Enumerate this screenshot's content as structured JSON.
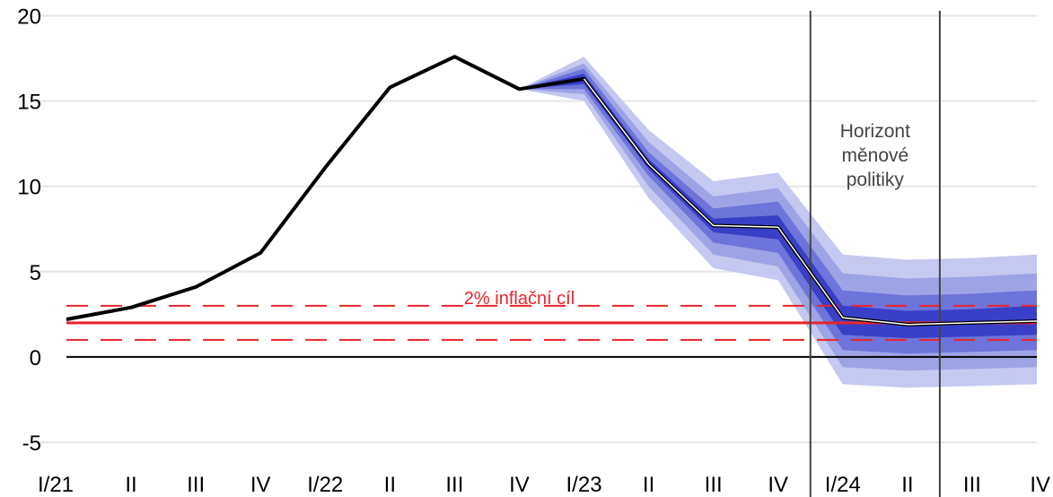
{
  "chart_data": {
    "type": "line",
    "categories": [
      "I/21",
      "II",
      "III",
      "IV",
      "I/22",
      "II",
      "III",
      "IV",
      "I/23",
      "II",
      "III",
      "IV",
      "I/24",
      "II",
      "III",
      "IV"
    ],
    "series": [
      {
        "values": [
          2.2,
          2.9,
          4.1,
          6.1,
          11.1,
          15.8,
          17.6,
          15.7,
          16.3,
          11.3,
          7.7,
          7.6,
          2.3,
          1.9,
          2.0,
          2.1
        ]
      }
    ],
    "fan_bands": [
      {
        "lower": [
          null,
          null,
          null,
          null,
          null,
          null,
          null,
          15.7,
          15.0,
          9.3,
          5.2,
          4.5,
          -1.6,
          -1.8,
          -1.7,
          -1.6
        ],
        "upper": [
          null,
          null,
          null,
          null,
          null,
          null,
          null,
          15.7,
          17.6,
          13.3,
          10.3,
          10.8,
          6.0,
          5.7,
          5.8,
          6.0
        ]
      },
      {
        "lower": [
          null,
          null,
          null,
          null,
          null,
          null,
          null,
          15.7,
          15.4,
          10.0,
          6.0,
          5.3,
          -0.6,
          -0.8,
          -0.7,
          -0.6
        ],
        "upper": [
          null,
          null,
          null,
          null,
          null,
          null,
          null,
          15.7,
          17.2,
          12.6,
          9.4,
          9.9,
          4.9,
          4.6,
          4.7,
          4.9
        ]
      },
      {
        "lower": [
          null,
          null,
          null,
          null,
          null,
          null,
          null,
          15.7,
          15.7,
          10.6,
          6.7,
          6.1,
          0.4,
          0.2,
          0.3,
          0.4
        ],
        "upper": [
          null,
          null,
          null,
          null,
          null,
          null,
          null,
          15.7,
          16.9,
          12.0,
          8.7,
          9.1,
          3.9,
          3.6,
          3.7,
          3.9
        ]
      },
      {
        "lower": [
          null,
          null,
          null,
          null,
          null,
          null,
          null,
          15.7,
          16.0,
          11.0,
          7.3,
          6.9,
          1.3,
          1.1,
          1.2,
          1.3
        ],
        "upper": [
          null,
          null,
          null,
          null,
          null,
          null,
          null,
          15.7,
          16.6,
          11.6,
          8.1,
          8.3,
          3.0,
          2.7,
          2.8,
          3.0
        ]
      }
    ],
    "target": {
      "value": 2,
      "lower": 1,
      "upper": 3,
      "label": "2% inflační cíl"
    },
    "ylim": [
      -6,
      20.5
    ],
    "yticks": [
      "20",
      "15",
      "10",
      "5",
      "0",
      "-5"
    ],
    "ytick_values": [
      20,
      15,
      10,
      5,
      0,
      -5
    ],
    "vertical_markers": [
      {
        "x_index": 11.5
      },
      {
        "x_index": 13.5
      }
    ],
    "annotation": [
      "Horizont",
      "měnové",
      "politiky"
    ],
    "grid": "horizontal",
    "legend": "none",
    "xlabel": "",
    "ylabel": "",
    "colors": {
      "line": "#000000",
      "fan": [
        "#c5c8f0",
        "#9ea3e6",
        "#6e74d9",
        "#3a3fc7"
      ],
      "target": "#e8242b",
      "grid": "#e6e6e6",
      "marker": "#444444",
      "zero": "#000000"
    }
  }
}
